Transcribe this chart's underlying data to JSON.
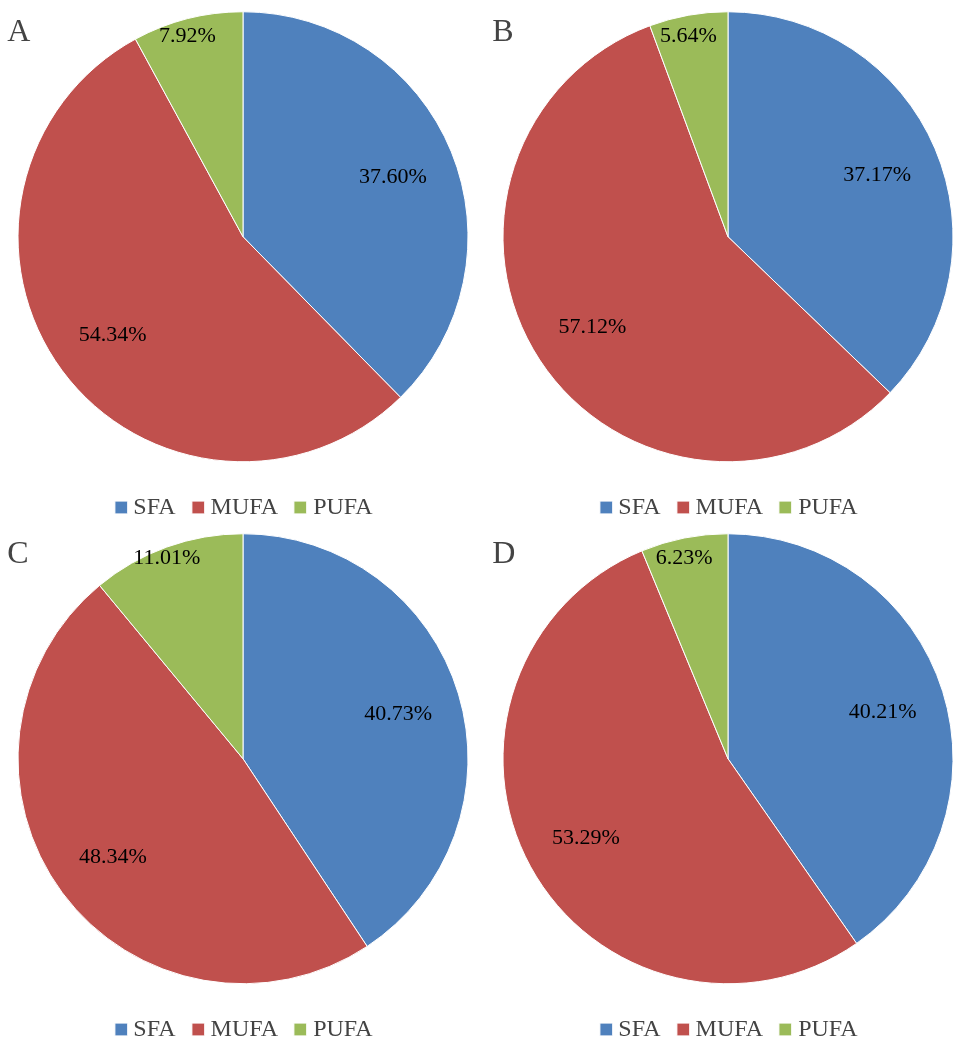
{
  "chart_data": [
    {
      "type": "pie",
      "title": "A",
      "categories": [
        "SFA",
        "MUFA",
        "PUFA"
      ],
      "values": [
        37.6,
        54.34,
        7.92
      ],
      "value_labels": [
        "37.60%",
        "54.34%",
        "7.92%"
      ],
      "colors": [
        "#4f81bd",
        "#c0504d",
        "#9bbb59"
      ],
      "legend": "bottom"
    },
    {
      "type": "pie",
      "title": "B",
      "categories": [
        "SFA",
        "MUFA",
        "PUFA"
      ],
      "values": [
        37.17,
        57.12,
        5.64
      ],
      "value_labels": [
        "37.17%",
        "57.12%",
        "5.64%"
      ],
      "colors": [
        "#4f81bd",
        "#c0504d",
        "#9bbb59"
      ],
      "legend": "bottom"
    },
    {
      "type": "pie",
      "title": "C",
      "categories": [
        "SFA",
        "MUFA",
        "PUFA"
      ],
      "values": [
        40.73,
        48.34,
        11.01
      ],
      "value_labels": [
        "40.73%",
        "48.34%",
        "11.01%"
      ],
      "colors": [
        "#4f81bd",
        "#c0504d",
        "#9bbb59"
      ],
      "legend": "bottom"
    },
    {
      "type": "pie",
      "title": "D",
      "categories": [
        "SFA",
        "MUFA",
        "PUFA"
      ],
      "values": [
        40.21,
        53.29,
        6.23
      ],
      "value_labels": [
        "40.21%",
        "53.29%",
        "6.23%"
      ],
      "colors": [
        "#4f81bd",
        "#c0504d",
        "#9bbb59"
      ],
      "legend": "bottom"
    }
  ]
}
